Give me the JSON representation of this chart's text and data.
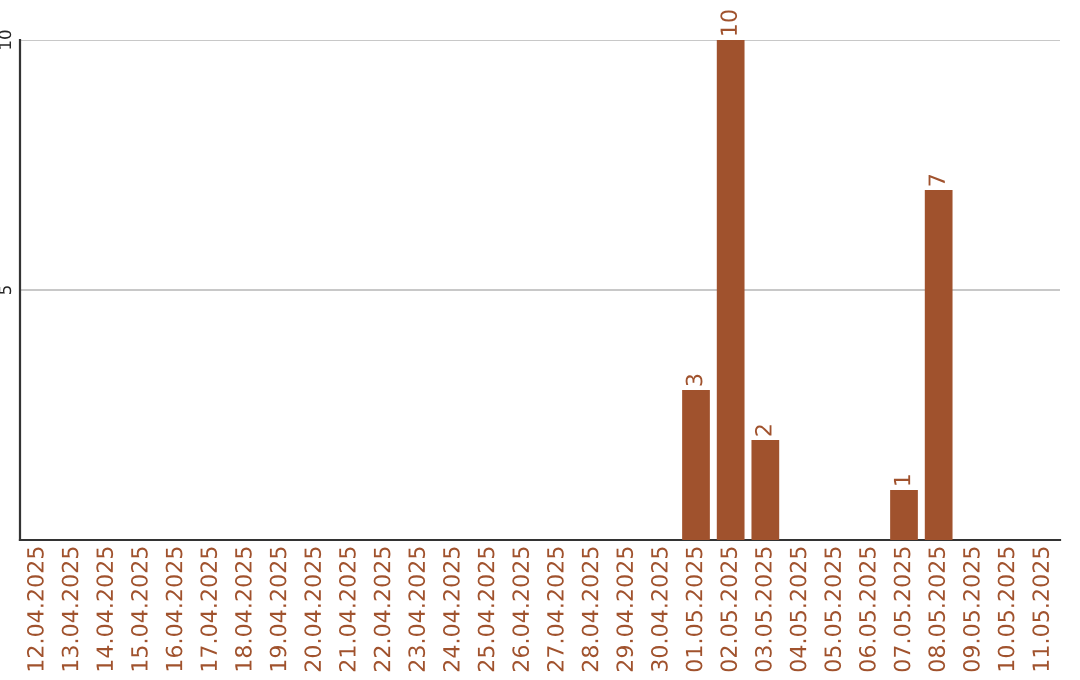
{
  "chart_data": {
    "type": "bar",
    "categories": [
      "12.04.2025",
      "13.04.2025",
      "14.04.2025",
      "15.04.2025",
      "16.04.2025",
      "17.04.2025",
      "18.04.2025",
      "19.04.2025",
      "20.04.2025",
      "21.04.2025",
      "22.04.2025",
      "23.04.2025",
      "24.04.2025",
      "25.04.2025",
      "26.04.2025",
      "27.04.2025",
      "28.04.2025",
      "29.04.2025",
      "30.04.2025",
      "01.05.2025",
      "02.05.2025",
      "03.05.2025",
      "04.05.2025",
      "05.05.2025",
      "06.05.2025",
      "07.05.2025",
      "08.05.2025",
      "09.05.2025",
      "10.05.2025",
      "11.05.2025"
    ],
    "values": [
      0,
      0,
      0,
      0,
      0,
      0,
      0,
      0,
      0,
      0,
      0,
      0,
      0,
      0,
      0,
      0,
      0,
      0,
      0,
      3,
      10,
      2,
      0,
      0,
      0,
      1,
      7,
      0,
      0,
      0
    ],
    "value_labels": [
      null,
      null,
      null,
      null,
      null,
      null,
      null,
      null,
      null,
      null,
      null,
      null,
      null,
      null,
      null,
      null,
      null,
      null,
      null,
      "3",
      "10",
      "2",
      null,
      null,
      null,
      "1",
      "7",
      null,
      null,
      null
    ],
    "color": "#a0522d",
    "ylim": [
      0,
      10
    ],
    "yticks": [
      5,
      10
    ],
    "grid": "y"
  }
}
